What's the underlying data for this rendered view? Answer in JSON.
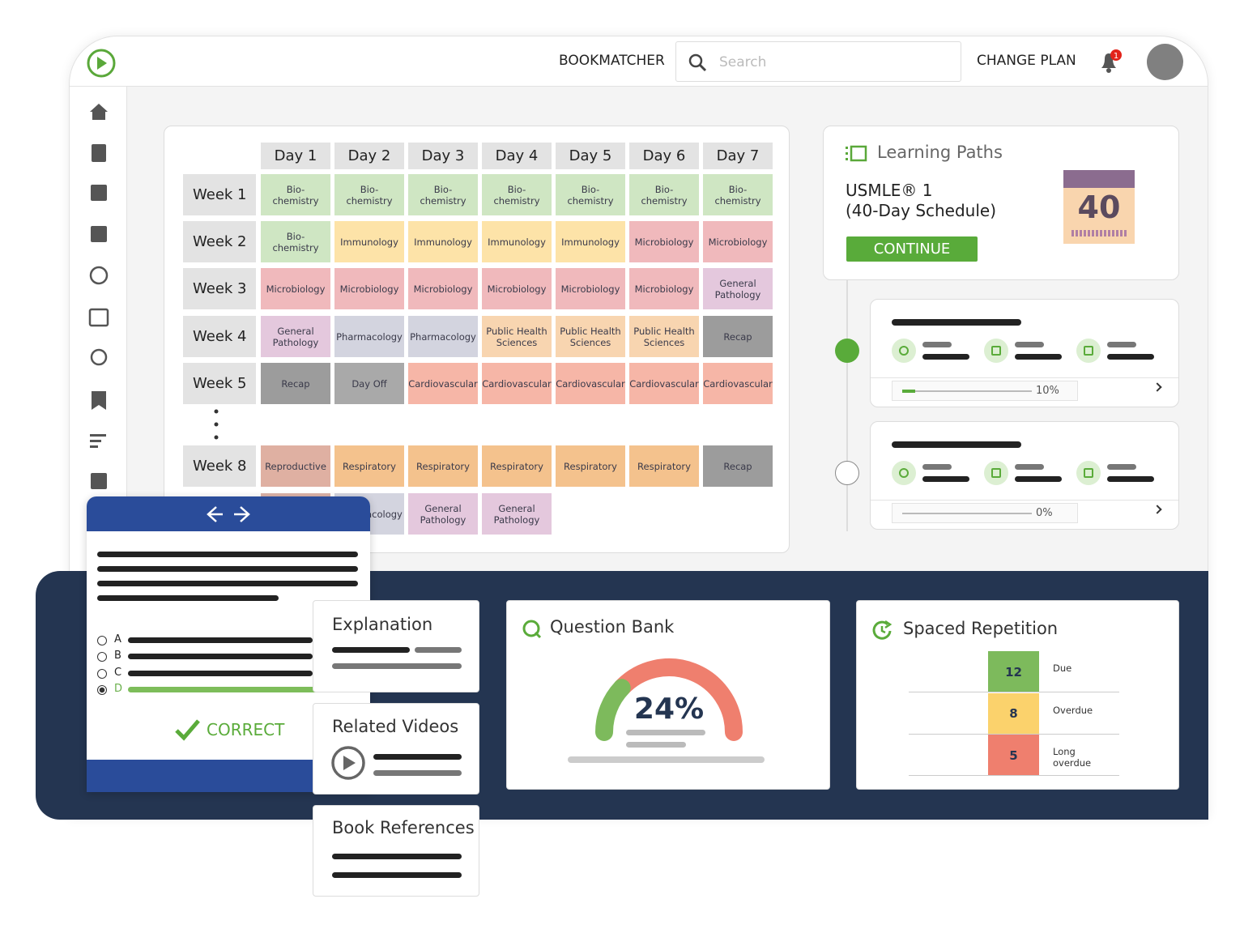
{
  "header": {
    "nav": [
      "BOOKMATCHER",
      "CHANGE PLAN"
    ],
    "search_placeholder": "Search",
    "notifications": "1"
  },
  "schedule": {
    "days": [
      "Day 1",
      "Day 2",
      "Day 3",
      "Day 4",
      "Day 5",
      "Day 6",
      "Day 7"
    ],
    "weeks": [
      {
        "label": "Week 1",
        "cells": [
          {
            "text": "Bio-\nchemistry",
            "color": "#cfe6c3"
          },
          {
            "text": "Bio-\nchemistry",
            "color": "#cfe6c3"
          },
          {
            "text": "Bio-\nchemistry",
            "color": "#cfe6c3"
          },
          {
            "text": "Bio-\nchemistry",
            "color": "#cfe6c3"
          },
          {
            "text": "Bio-\nchemistry",
            "color": "#cfe6c3"
          },
          {
            "text": "Bio-\nchemistry",
            "color": "#cfe6c3"
          },
          {
            "text": "Bio-\nchemistry",
            "color": "#cfe6c3"
          }
        ]
      },
      {
        "label": "Week 2",
        "cells": [
          {
            "text": "Bio-\nchemistry",
            "color": "#cfe6c3"
          },
          {
            "text": "Immunology",
            "color": "#fde3a8"
          },
          {
            "text": "Immunology",
            "color": "#fde3a8"
          },
          {
            "text": "Immunology",
            "color": "#fde3a8"
          },
          {
            "text": "Immunology",
            "color": "#fde3a8"
          },
          {
            "text": "Microbiology",
            "color": "#f0b9bc"
          },
          {
            "text": "Microbiology",
            "color": "#f0b9bc"
          }
        ]
      },
      {
        "label": "Week 3",
        "cells": [
          {
            "text": "Microbiology",
            "color": "#f0b9bc"
          },
          {
            "text": "Microbiology",
            "color": "#f0b9bc"
          },
          {
            "text": "Microbiology",
            "color": "#f0b9bc"
          },
          {
            "text": "Microbiology",
            "color": "#f0b9bc"
          },
          {
            "text": "Microbiology",
            "color": "#f0b9bc"
          },
          {
            "text": "Microbiology",
            "color": "#f0b9bc"
          },
          {
            "text": "General\nPathology",
            "color": "#e4c8dd"
          }
        ]
      },
      {
        "label": "Week 4",
        "cells": [
          {
            "text": "General\nPathology",
            "color": "#e4c8dd"
          },
          {
            "text": "Pharmacology",
            "color": "#d3d4df"
          },
          {
            "text": "Pharmacology",
            "color": "#d3d4df"
          },
          {
            "text": "Public Health\nSciences",
            "color": "#f8d5b0"
          },
          {
            "text": "Public Health\nSciences",
            "color": "#f8d5b0"
          },
          {
            "text": "Public Health\nSciences",
            "color": "#f8d5b0"
          },
          {
            "text": "Recap",
            "color": "#9c9c9c"
          }
        ]
      },
      {
        "label": "Week 5",
        "cells": [
          {
            "text": "Recap",
            "color": "#9c9c9c"
          },
          {
            "text": "Day Off",
            "color": "#a9a9a9"
          },
          {
            "text": "Cardiovascular",
            "color": "#f6b6a7"
          },
          {
            "text": "Cardiovascular",
            "color": "#f6b6a7"
          },
          {
            "text": "Cardiovascular",
            "color": "#f6b6a7"
          },
          {
            "text": "Cardiovascular",
            "color": "#f6b6a7"
          },
          {
            "text": "Cardiovascular",
            "color": "#f6b6a7"
          }
        ]
      },
      {
        "label": "Week 8",
        "cells": [
          {
            "text": "Reproductive",
            "color": "#dfb0a2"
          },
          {
            "text": "Respiratory",
            "color": "#f4c28d"
          },
          {
            "text": "Respiratory",
            "color": "#f4c28d"
          },
          {
            "text": "Respiratory",
            "color": "#f4c28d"
          },
          {
            "text": "Respiratory",
            "color": "#f4c28d"
          },
          {
            "text": "Respiratory",
            "color": "#f4c28d"
          },
          {
            "text": "Recap",
            "color": "#9c9c9c"
          }
        ]
      },
      {
        "label": null,
        "cells": [
          {
            "text": null,
            "color": "#dcb3a8"
          },
          {
            "text": "Pharmacology",
            "color": "#d3d4df"
          },
          {
            "text": "General\nPathology",
            "color": "#e4c8dd"
          },
          {
            "text": "General\nPathology",
            "color": "#e4c8dd"
          }
        ]
      }
    ]
  },
  "learning_paths": {
    "title": "Learning Paths",
    "course": "USMLE® 1\n(40-Day Schedule)",
    "button": "CONTINUE",
    "calendar": "40",
    "paths": [
      {
        "progress": 10,
        "label": "10%"
      },
      {
        "progress": 0,
        "label": "0%"
      }
    ]
  },
  "question": {
    "options": [
      "A",
      "B",
      "C",
      "D"
    ],
    "result": "CORRECT"
  },
  "resources": [
    "Explanation",
    "Related Videos",
    "Book References"
  ],
  "question_bank": {
    "title": "Question Bank",
    "value": 24,
    "label": "24%"
  },
  "spaced_repetition": {
    "title": "Spaced Repetition",
    "rows": [
      {
        "value": 12,
        "label": "Due",
        "color": "#7dba5c"
      },
      {
        "value": 8,
        "label": "Overdue",
        "color": "#fbd26c"
      },
      {
        "value": 5,
        "label": "Long\noverdue",
        "color": "#ef7f6e"
      }
    ]
  }
}
